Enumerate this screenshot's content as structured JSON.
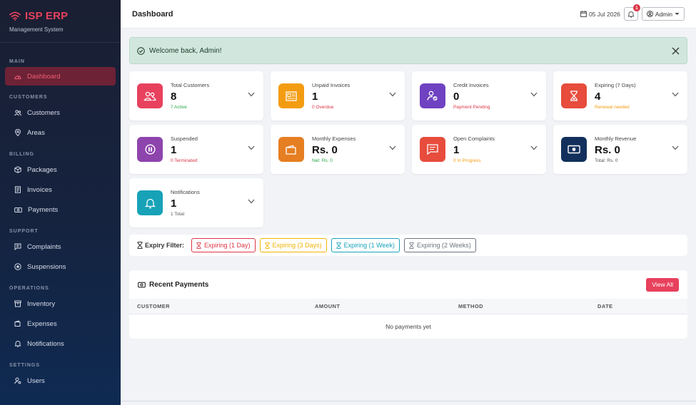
{
  "brand": {
    "title": "ISP ERP",
    "subtitle": "Management System"
  },
  "nav": {
    "sections": {
      "main": "MAIN",
      "customers": "CUSTOMERS",
      "billing": "BILLING",
      "support": "SUPPORT",
      "operations": "OPERATIONS",
      "settings": "SETTINGS"
    },
    "items": {
      "dashboard": "Dashboard",
      "customers": "Customers",
      "areas": "Areas",
      "packages": "Packages",
      "invoices": "Invoices",
      "payments": "Payments",
      "complaints": "Complaints",
      "suspensions": "Suspensions",
      "inventory": "Inventory",
      "expenses": "Expenses",
      "notifications": "Notifications",
      "users": "Users"
    },
    "active": "dashboard"
  },
  "header": {
    "title": "Dashboard",
    "date": "05 Jul 2026",
    "notification_count": "1",
    "user": "Admin"
  },
  "alert": {
    "message": "Welcome back, Admin!"
  },
  "stats": [
    {
      "label": "Total Customers",
      "value": "8",
      "sub": "7 Active",
      "icon": "users-icon",
      "color": "#e8415d",
      "sub_color": "#28a745"
    },
    {
      "label": "Unpaid Invoices",
      "value": "1",
      "sub": "0 Overdue",
      "icon": "invoice-icon",
      "color": "#f39c12",
      "sub_color": "#dc3545"
    },
    {
      "label": "Credit Invoices",
      "value": "0",
      "sub": "Payment Pending",
      "icon": "user-check-icon",
      "color": "#6f42c1",
      "sub_color": "#dc3545"
    },
    {
      "label": "Expiring (7 Days)",
      "value": "4",
      "sub": "Renewal needed",
      "icon": "hourglass-icon",
      "color": "#e74c3c",
      "sub_color": "#f39c12"
    },
    {
      "label": "Suspended",
      "value": "1",
      "sub": "0 Terminated",
      "icon": "pause-icon",
      "color": "#8e44ad",
      "sub_color": "#dc3545"
    },
    {
      "label": "Monthly Expenses",
      "value": "Rs. 0",
      "sub": "Net: Rs. 0",
      "icon": "wallet-icon",
      "color": "#e67e22",
      "sub_color": "#28a745"
    },
    {
      "label": "Open Complaints",
      "value": "1",
      "sub": "0 In Progress",
      "icon": "chat-icon",
      "color": "#e74c3c",
      "sub_color": "#f39c12"
    },
    {
      "label": "Monthly Revenue",
      "value": "Rs. 0",
      "sub": "Total: Rs. 0",
      "icon": "cash-icon",
      "color": "#12305b",
      "sub_color": "#555555"
    },
    {
      "label": "Notifications",
      "value": "1",
      "sub": "1 Total",
      "icon": "bell-icon",
      "color": "#17a2b8",
      "sub_color": "#555555"
    }
  ],
  "filter": {
    "label": "Expiry Filter:",
    "buttons": [
      {
        "label": "Expiring (1 Day)",
        "color": "#dc3545"
      },
      {
        "label": "Expiring (3 Days)",
        "color": "#f0b400"
      },
      {
        "label": "Expiring (1 Week)",
        "color": "#17a2b8"
      },
      {
        "label": "Expiring (2 Weeks)",
        "color": "#6c757d"
      }
    ]
  },
  "recent_payments": {
    "title": "Recent Payments",
    "view_all": "View All",
    "columns": [
      "CUSTOMER",
      "AMOUNT",
      "METHOD",
      "DATE"
    ],
    "empty": "No payments yet"
  }
}
